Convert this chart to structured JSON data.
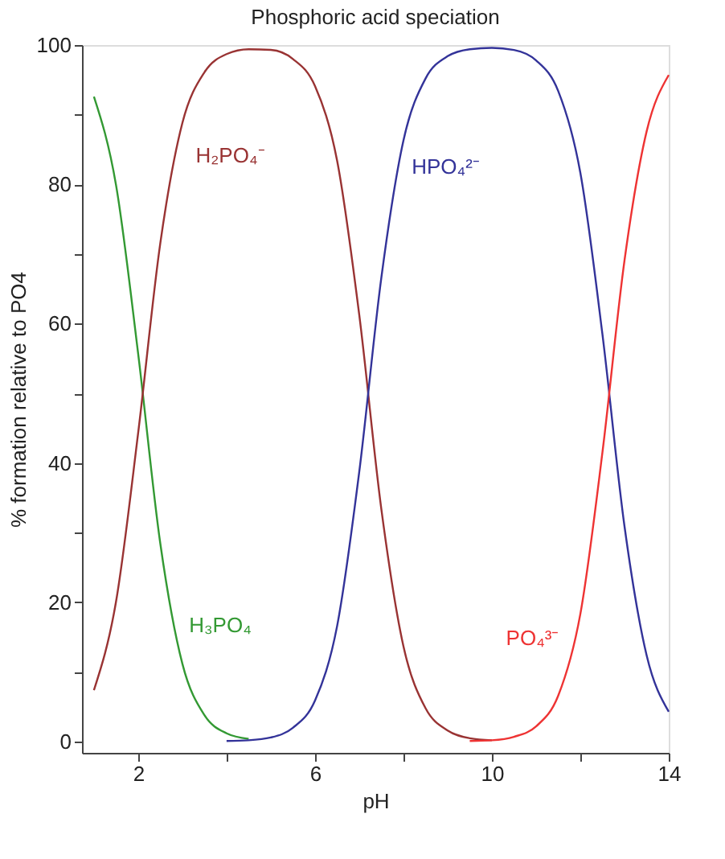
{
  "chart_data": {
    "type": "line",
    "title": "Phosphoric acid speciation",
    "xlabel": "pH",
    "ylabel": "% formation relative to PO4",
    "x": [
      1,
      1.5,
      2,
      2.5,
      3,
      3.5,
      4,
      4.5,
      5,
      5.5,
      6,
      6.5,
      7,
      7.5,
      8,
      8.5,
      9,
      9.5,
      10,
      10.5,
      11,
      11.5,
      12,
      12.5,
      13,
      13.5,
      14
    ],
    "series": [
      {
        "color": "#339933",
        "values": [
          92.6,
          79.9,
          55.7,
          28.5,
          11.2,
          3.8,
          1.2,
          0.4,
          null,
          null,
          null,
          null,
          null,
          null,
          null,
          null,
          null,
          null,
          null,
          null,
          null,
          null,
          null,
          null,
          null,
          null,
          null
        ]
      },
      {
        "color": "#993333",
        "values": [
          7.4,
          20.1,
          44.3,
          71.5,
          88.8,
          96.1,
          98.7,
          99.4,
          99.3,
          98.0,
          94.1,
          83.4,
          61.3,
          33.4,
          13.7,
          4.8,
          1.6,
          0.5,
          0.2,
          null,
          null,
          null,
          null,
          null,
          null,
          null,
          null
        ]
      },
      {
        "color": "#333399",
        "values": [
          null,
          null,
          null,
          null,
          null,
          null,
          0.1,
          0.2,
          0.6,
          2.0,
          5.9,
          16.6,
          38.7,
          66.6,
          86.3,
          95.2,
          98.4,
          99.4,
          99.6,
          99.3,
          97.8,
          93.4,
          81.7,
          58.5,
          30.9,
          12.4,
          4.3
        ]
      },
      {
        "color": "#ee3333",
        "values": [
          null,
          null,
          null,
          null,
          null,
          null,
          null,
          null,
          null,
          null,
          null,
          null,
          null,
          null,
          null,
          null,
          null,
          0.1,
          0.2,
          0.7,
          2.2,
          6.6,
          18.3,
          41.5,
          69.1,
          87.6,
          95.7
        ]
      }
    ],
    "annotations": [
      "H₃PO₄",
      "H₂PO₄⁻",
      "HPO₄²⁻",
      "PO₄³⁻"
    ],
    "xlim": [
      0.73,
      14
    ],
    "ylim": [
      -1.6,
      100
    ],
    "xticks": [
      2,
      {
        "value": 4,
        "label": null
      },
      6,
      {
        "value": 8,
        "label": null
      },
      10,
      {
        "value": 12,
        "label": null
      },
      14
    ],
    "yticks": [
      0,
      {
        "value": 10,
        "label": null
      },
      20,
      {
        "value": 30,
        "label": null
      },
      40,
      {
        "value": 50,
        "label": null
      },
      60,
      {
        "value": 70,
        "label": null
      },
      80,
      {
        "value": 90,
        "label": null
      },
      100
    ],
    "grid": false,
    "legend": false,
    "marker": "none",
    "line_style": "solid"
  }
}
